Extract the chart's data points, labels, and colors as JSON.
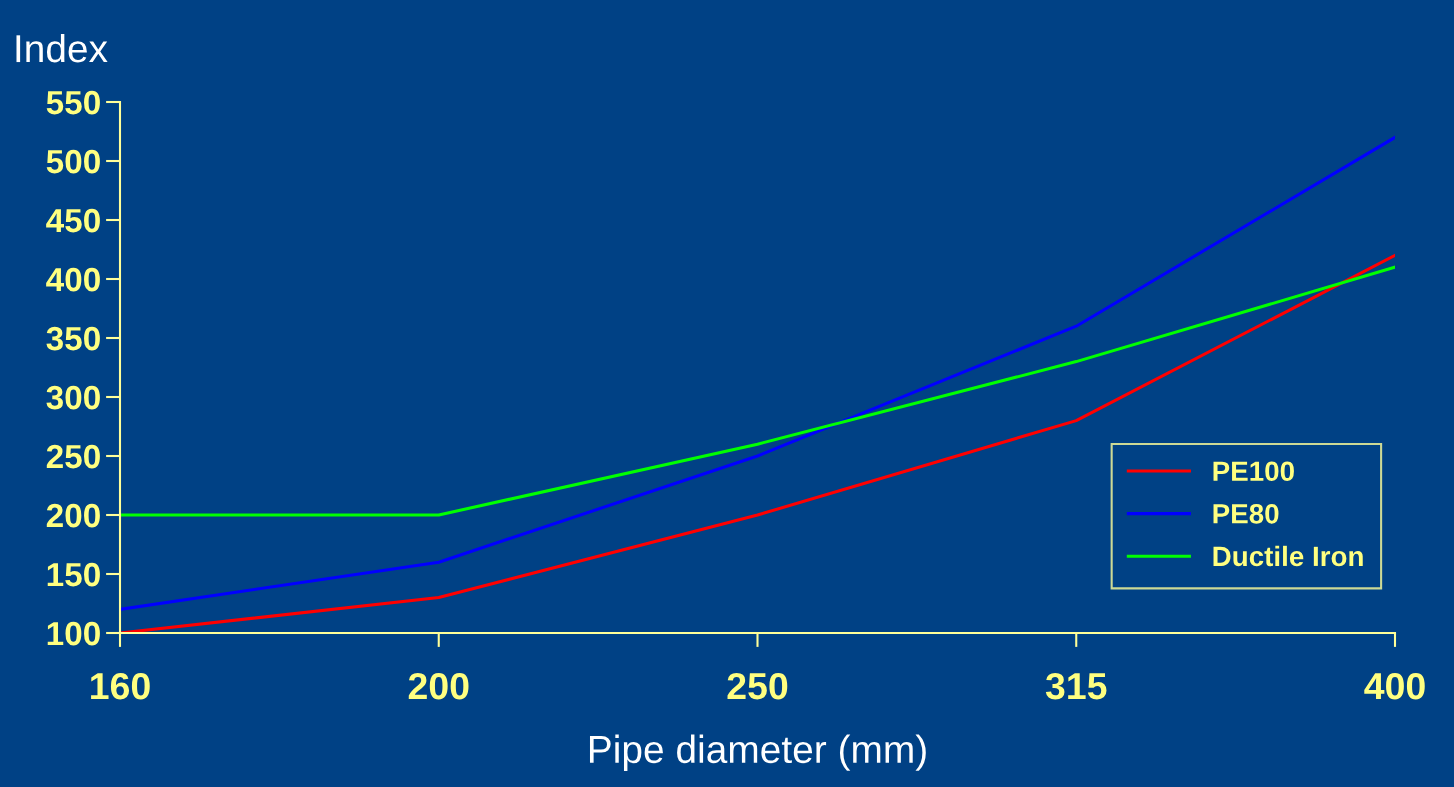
{
  "chart_data": {
    "type": "line",
    "ylabel": "Index",
    "xlabel": "Pipe diameter (mm)",
    "categories": [
      "160",
      "200",
      "250",
      "315",
      "400"
    ],
    "series": [
      {
        "name": "PE100",
        "color": "#ff0000",
        "values": [
          100,
          130,
          200,
          280,
          420
        ]
      },
      {
        "name": "PE80",
        "color": "#0000ff",
        "values": [
          120,
          160,
          250,
          360,
          520
        ]
      },
      {
        "name": "Ductile Iron",
        "color": "#00ff00",
        "values": [
          200,
          200,
          260,
          330,
          410
        ]
      }
    ],
    "ylim": [
      100,
      550
    ],
    "yticks": [
      100,
      150,
      200,
      250,
      300,
      350,
      400,
      450,
      500,
      550
    ],
    "grid": false,
    "legend": "right",
    "marker": "none",
    "line_style": "solid"
  }
}
